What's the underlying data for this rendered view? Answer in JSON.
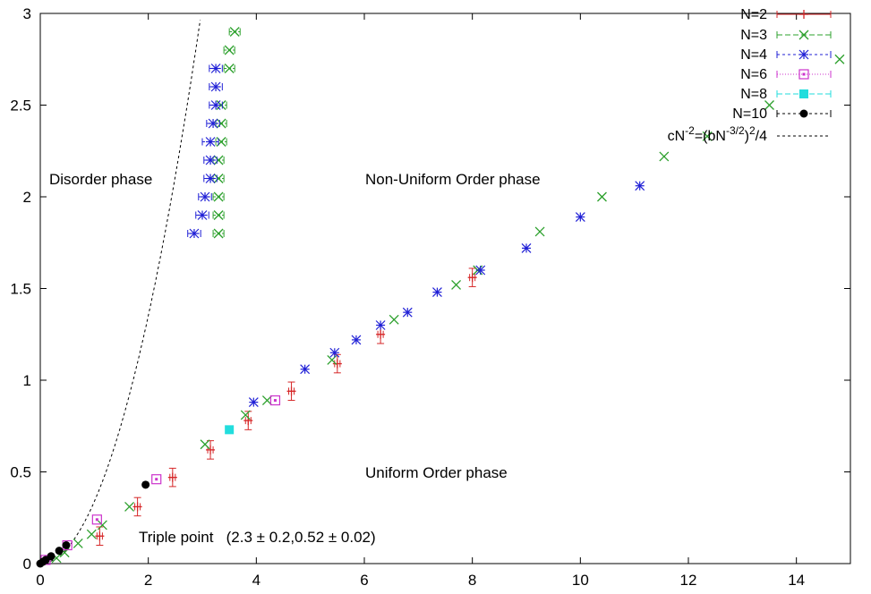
{
  "chart_data": {
    "type": "scatter",
    "title": "",
    "xlabel": "",
    "ylabel": "",
    "xlim": [
      0,
      15
    ],
    "ylim": [
      0,
      3
    ],
    "xticks": [
      "0",
      "2",
      "4",
      "6",
      "8",
      "10",
      "12",
      "14"
    ],
    "yticks": [
      "0",
      "0.5",
      "1",
      "1.5",
      "2",
      "2.5",
      "3"
    ],
    "grid": false,
    "legend_position": "top-right",
    "annotations": {
      "disorder": "Disorder phase",
      "nonuniform": "Non-Uniform Order phase",
      "uniform": "Uniform Order phase",
      "triple": "Triple point   (2.3 ± 0.2,0.52 ± 0.02)"
    },
    "series": [
      {
        "name": "N=2",
        "marker": "plus",
        "color": "#d62728",
        "points": [
          {
            "x": 1.1,
            "y": 0.15,
            "xerr": 0.05,
            "yerr": 0.05
          },
          {
            "x": 1.8,
            "y": 0.31,
            "xerr": 0.05,
            "yerr": 0.05
          },
          {
            "x": 2.45,
            "y": 0.47,
            "xerr": 0.05,
            "yerr": 0.05
          },
          {
            "x": 3.15,
            "y": 0.62,
            "xerr": 0.05,
            "yerr": 0.05
          },
          {
            "x": 3.85,
            "y": 0.78,
            "xerr": 0.05,
            "yerr": 0.05
          },
          {
            "x": 4.65,
            "y": 0.94,
            "xerr": 0.05,
            "yerr": 0.05
          },
          {
            "x": 5.5,
            "y": 1.09,
            "xerr": 0.05,
            "yerr": 0.05
          },
          {
            "x": 6.3,
            "y": 1.25,
            "xerr": 0.05,
            "yerr": 0.05
          },
          {
            "x": 8.0,
            "y": 1.56,
            "xerr": 0.05,
            "yerr": 0.05
          }
        ]
      },
      {
        "name": "N=3",
        "marker": "cross",
        "color": "#2ca02c",
        "points": [
          {
            "x": 0.3,
            "y": 0.03
          },
          {
            "x": 0.45,
            "y": 0.06
          },
          {
            "x": 0.7,
            "y": 0.11
          },
          {
            "x": 0.95,
            "y": 0.16
          },
          {
            "x": 1.15,
            "y": 0.21
          },
          {
            "x": 1.65,
            "y": 0.31
          },
          {
            "x": 3.05,
            "y": 0.65
          },
          {
            "x": 3.8,
            "y": 0.81
          },
          {
            "x": 4.2,
            "y": 0.89
          },
          {
            "x": 5.4,
            "y": 1.11
          },
          {
            "x": 6.55,
            "y": 1.33
          },
          {
            "x": 7.7,
            "y": 1.52
          },
          {
            "x": 8.1,
            "y": 1.6
          },
          {
            "x": 9.25,
            "y": 1.81
          },
          {
            "x": 10.4,
            "y": 2.0
          },
          {
            "x": 11.55,
            "y": 2.22
          },
          {
            "x": 12.35,
            "y": 2.33
          },
          {
            "x": 13.5,
            "y": 2.5
          },
          {
            "x": 14.8,
            "y": 2.75
          },
          {
            "x": 3.3,
            "y": 1.8,
            "xerr": 0.1
          },
          {
            "x": 3.3,
            "y": 1.9,
            "xerr": 0.1
          },
          {
            "x": 3.3,
            "y": 2.0,
            "xerr": 0.1
          },
          {
            "x": 3.3,
            "y": 2.1,
            "xerr": 0.1
          },
          {
            "x": 3.3,
            "y": 2.2,
            "xerr": 0.1
          },
          {
            "x": 3.35,
            "y": 2.3,
            "xerr": 0.1
          },
          {
            "x": 3.35,
            "y": 2.4,
            "xerr": 0.1
          },
          {
            "x": 3.35,
            "y": 2.5,
            "xerr": 0.1
          },
          {
            "x": 3.5,
            "y": 2.7,
            "xerr": 0.1
          },
          {
            "x": 3.5,
            "y": 2.8,
            "xerr": 0.1
          },
          {
            "x": 3.6,
            "y": 2.9,
            "xerr": 0.1
          }
        ]
      },
      {
        "name": "N=4",
        "marker": "star",
        "color": "#1f1fd6",
        "points": [
          {
            "x": 2.85,
            "y": 1.8,
            "xerr": 0.12
          },
          {
            "x": 3.0,
            "y": 1.9,
            "xerr": 0.12
          },
          {
            "x": 3.05,
            "y": 2.0,
            "xerr": 0.12
          },
          {
            "x": 3.15,
            "y": 2.1,
            "xerr": 0.12
          },
          {
            "x": 3.15,
            "y": 2.2,
            "xerr": 0.12
          },
          {
            "x": 3.15,
            "y": 2.3,
            "xerr": 0.15
          },
          {
            "x": 3.2,
            "y": 2.4,
            "xerr": 0.12
          },
          {
            "x": 3.25,
            "y": 2.5,
            "xerr": 0.12
          },
          {
            "x": 3.25,
            "y": 2.6,
            "xerr": 0.12
          },
          {
            "x": 3.25,
            "y": 2.7,
            "xerr": 0.12
          },
          {
            "x": 3.95,
            "y": 0.88
          },
          {
            "x": 4.9,
            "y": 1.06
          },
          {
            "x": 5.45,
            "y": 1.15
          },
          {
            "x": 5.85,
            "y": 1.22
          },
          {
            "x": 6.3,
            "y": 1.3
          },
          {
            "x": 6.8,
            "y": 1.37
          },
          {
            "x": 7.35,
            "y": 1.48
          },
          {
            "x": 8.15,
            "y": 1.6
          },
          {
            "x": 9.0,
            "y": 1.72
          },
          {
            "x": 10.0,
            "y": 1.89
          },
          {
            "x": 11.1,
            "y": 2.06
          }
        ]
      },
      {
        "name": "N=6",
        "marker": "box",
        "color": "#cc33cc",
        "points": [
          {
            "x": 0.1,
            "y": 0.02
          },
          {
            "x": 0.5,
            "y": 0.1
          },
          {
            "x": 1.05,
            "y": 0.24
          },
          {
            "x": 2.15,
            "y": 0.46
          },
          {
            "x": 4.35,
            "y": 0.89
          }
        ]
      },
      {
        "name": "N=8",
        "marker": "filled-square",
        "color": "#22dddd",
        "points": [
          {
            "x": 3.5,
            "y": 0.73
          }
        ]
      },
      {
        "name": "N=10",
        "marker": "filled-circle",
        "color": "#000000",
        "points": [
          {
            "x": 0.0,
            "y": 0.0
          },
          {
            "x": 0.05,
            "y": 0.01
          },
          {
            "x": 0.1,
            "y": 0.02
          },
          {
            "x": 0.2,
            "y": 0.04
          },
          {
            "x": 0.35,
            "y": 0.07
          },
          {
            "x": 0.48,
            "y": 0.1
          },
          {
            "x": 1.95,
            "y": 0.43
          }
        ]
      },
      {
        "name": "cN^-2=(bN^-3/2)^2/4",
        "marker": "dashed-line",
        "color": "#000000",
        "curve": {
          "c": 0.338,
          "xmax": 3.45
        }
      }
    ]
  },
  "legend": {
    "entries": [
      "N=2",
      "N=3",
      "N=4",
      "N=6",
      "N=8",
      "N=10"
    ],
    "formula": {
      "lhs": "cN",
      "exp1": "-2",
      "mid": "=(bN",
      "exp2": "-3/2",
      "close": ")",
      "exp3": "2",
      "tail": "/4"
    }
  }
}
